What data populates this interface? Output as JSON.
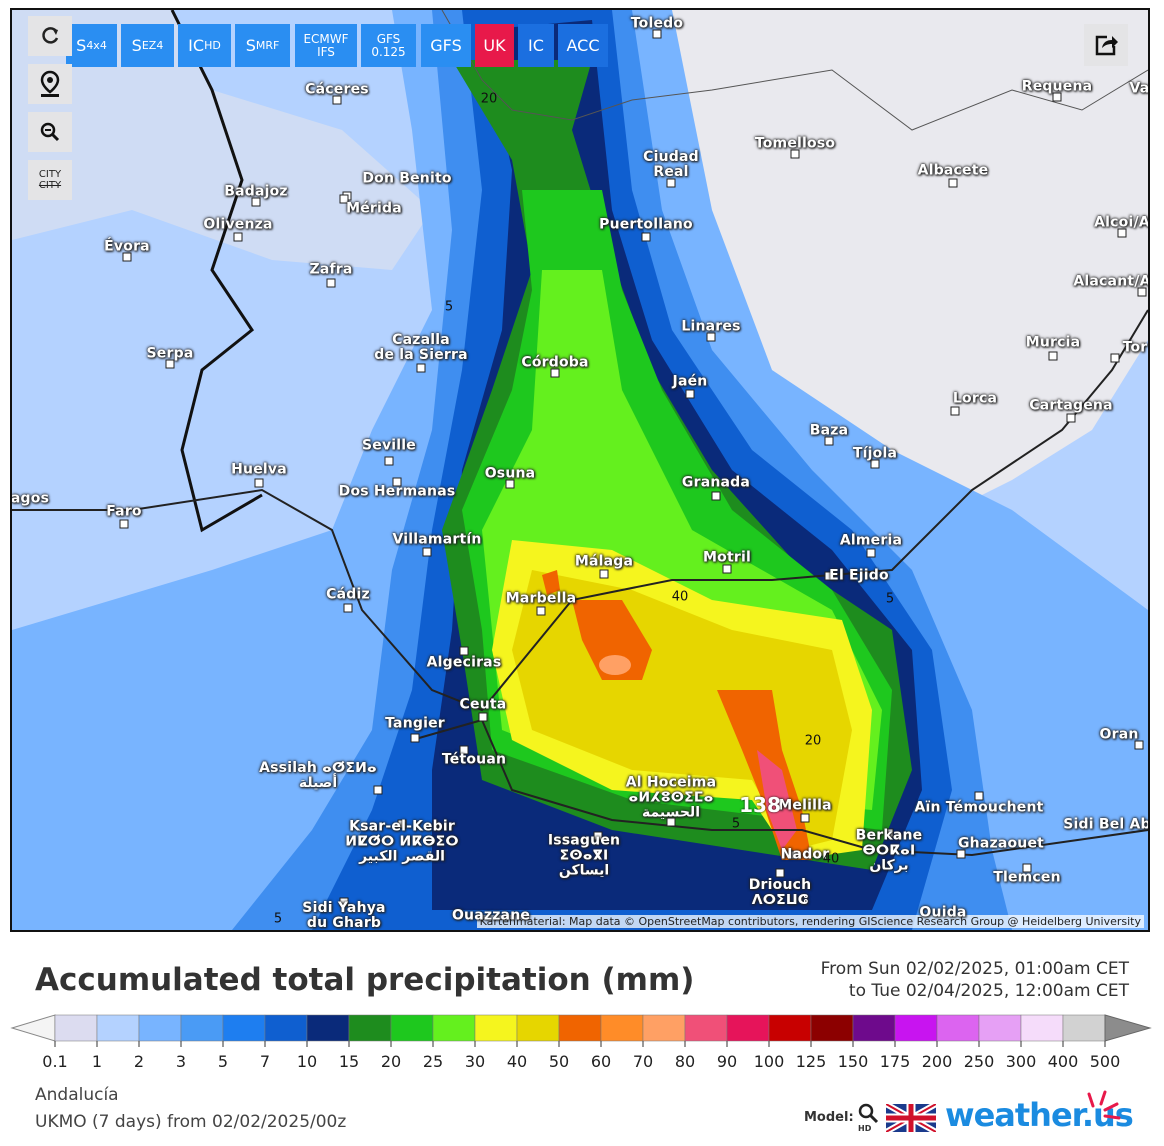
{
  "toolbar": {
    "buttons": [
      {
        "main": "S",
        "sub": "4x4"
      },
      {
        "main": "S",
        "sub": "EZ4"
      },
      {
        "main": "IC",
        "sub": "HD"
      },
      {
        "main": "S",
        "sub": "MRF"
      },
      {
        "main": "ECMWF IFS"
      },
      {
        "main": "GFS 0.125"
      },
      {
        "main": "GFS"
      },
      {
        "main": "UK"
      },
      {
        "main": "IC"
      },
      {
        "main": "ACC"
      }
    ],
    "city_toggle": [
      "CITY",
      "CITY"
    ]
  },
  "map": {
    "cities": [
      {
        "lines": [
          "Toledo"
        ]
      },
      {
        "lines": [
          "Cáceres"
        ]
      },
      {
        "lines": [
          "Requena"
        ]
      },
      {
        "lines": [
          "Val"
        ]
      },
      {
        "lines": [
          "Tomelloso"
        ]
      },
      {
        "lines": [
          "Ciudad",
          "Real"
        ]
      },
      {
        "lines": [
          "Don Benito"
        ]
      },
      {
        "lines": [
          "Mérida"
        ]
      },
      {
        "lines": [
          "Badajoz"
        ]
      },
      {
        "lines": [
          "Albacete"
        ]
      },
      {
        "lines": [
          "Olivenza"
        ]
      },
      {
        "lines": [
          "Puertollano"
        ]
      },
      {
        "lines": [
          "Alcoi/A"
        ]
      },
      {
        "lines": [
          "Évora"
        ]
      },
      {
        "lines": [
          "Zafra"
        ]
      },
      {
        "lines": [
          "Alacant/A"
        ]
      },
      {
        "lines": [
          "Linares"
        ]
      },
      {
        "lines": [
          "Cazalla",
          "de la Sierra"
        ]
      },
      {
        "lines": [
          "Murcia"
        ]
      },
      {
        "lines": [
          "Tor"
        ]
      },
      {
        "lines": [
          "Serpa"
        ]
      },
      {
        "lines": [
          "Córdoba"
        ]
      },
      {
        "lines": [
          "Jaén"
        ]
      },
      {
        "lines": [
          "Lorca"
        ]
      },
      {
        "lines": [
          "Cartagena"
        ]
      },
      {
        "lines": [
          "Baza"
        ]
      },
      {
        "lines": [
          "Seville"
        ]
      },
      {
        "lines": [
          "Tíjola"
        ]
      },
      {
        "lines": [
          "Huelva"
        ]
      },
      {
        "lines": [
          "Osuna"
        ]
      },
      {
        "lines": [
          "Granada"
        ]
      },
      {
        "lines": [
          "Dos Hermanas"
        ]
      },
      {
        "lines": [
          "agos"
        ]
      },
      {
        "lines": [
          "Faro"
        ]
      },
      {
        "lines": [
          "Villamartín"
        ]
      },
      {
        "lines": [
          "Almeria"
        ]
      },
      {
        "lines": [
          "Motril"
        ]
      },
      {
        "lines": [
          "Málaga"
        ]
      },
      {
        "lines": [
          "El Ejido"
        ]
      },
      {
        "lines": [
          "Cádiz"
        ]
      },
      {
        "lines": [
          "Marbella"
        ]
      },
      {
        "lines": [
          "Algeciras"
        ]
      },
      {
        "lines": [
          "Ceuta"
        ]
      },
      {
        "lines": [
          "Tangier"
        ]
      },
      {
        "lines": [
          "Tétouan"
        ]
      },
      {
        "lines": [
          "Oran"
        ]
      },
      {
        "lines": [
          "Assilah ⴰⵚⵉⵍⴰ",
          "أصيلة"
        ]
      },
      {
        "lines": [
          "Al Hoceima",
          "ⴰⵍⵃⵓⵙⵉⵎⴰ",
          "الحسيمة"
        ]
      },
      {
        "lines": [
          "Melilla"
        ]
      },
      {
        "lines": [
          "Aïn Témouchent"
        ]
      },
      {
        "lines": [
          "Sidi Bel Ab"
        ]
      },
      {
        "lines": [
          "Ksar-el-Kebir",
          "ⵍⵇⵚⵔ ⵍⴽⴱⵉⵔ",
          "القصر الكبير"
        ]
      },
      {
        "lines": [
          "Issaguen",
          "ⵉⵙⴰⴳⵏ",
          "ايساكن"
        ]
      },
      {
        "lines": [
          "Berkane",
          "ⴱⵔⴽⴰⵏ",
          "بركان"
        ]
      },
      {
        "lines": [
          "Ghazaouet"
        ]
      },
      {
        "lines": [
          "Nador"
        ]
      },
      {
        "lines": [
          "Driouch",
          "ⴷⵔⵉⵡⵛ"
        ]
      },
      {
        "lines": [
          "Tlemcen"
        ]
      },
      {
        "lines": [
          "Sidi Yahya",
          "du Gharb"
        ]
      },
      {
        "lines": [
          "Ouida"
        ]
      },
      {
        "lines": [
          "Ouazzane"
        ]
      }
    ],
    "contour_labels": [
      "20",
      "5",
      "40",
      "5",
      "20",
      "138",
      "5",
      "40",
      "5"
    ],
    "attribution": "Kartenmaterial: Map data © OpenStreetMap contributors, rendering GIScience Research Group @ Heidelberg University"
  },
  "header": {
    "title": "Accumulated total precipitation (mm)",
    "from": "From Sun 02/02/2025, 01:00am CET",
    "to": "to Tue 02/04/2025, 12:00am CET"
  },
  "legend": {
    "labels": [
      "0.1",
      "1",
      "2",
      "3",
      "5",
      "7",
      "10",
      "15",
      "20",
      "25",
      "30",
      "40",
      "50",
      "60",
      "70",
      "80",
      "90",
      "100",
      "125",
      "150",
      "175",
      "200",
      "250",
      "300",
      "400",
      "500"
    ],
    "colors": [
      "#dcdcf0",
      "#b4d2ff",
      "#78b4ff",
      "#4a9bf5",
      "#1e7ef0",
      "#0f5fd0",
      "#0a2a7a",
      "#1e8c1e",
      "#1ec81e",
      "#64f01e",
      "#f5f51e",
      "#e6d600",
      "#f06400",
      "#ff8c28",
      "#ffa064",
      "#f05078",
      "#e6145a",
      "#c80000",
      "#8c0000",
      "#6e0a8c",
      "#c814f0",
      "#dc64f0",
      "#e6a0f5",
      "#f5dcfa",
      "#d2d2d2"
    ],
    "under_color": "#f4f4f4",
    "over_color": "#8c8c8c"
  },
  "footer": {
    "region": "Andalucía",
    "run": "UKMO (7 days) from 02/02/2025/00z",
    "model_label": "Model:",
    "hd": "HD",
    "brand": "weather.us"
  }
}
